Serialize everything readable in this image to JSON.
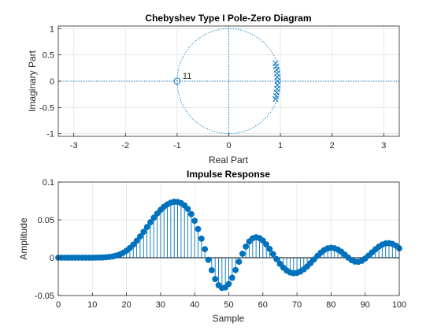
{
  "chart_data": [
    {
      "type": "scatter",
      "title": "Chebyshev Type I Pole-Zero Diagram",
      "xlabel": "Real Part",
      "ylabel": "Imaginary Part",
      "xlim": [
        -3.3,
        3.3
      ],
      "ylim": [
        -1.05,
        1.05
      ],
      "xticks": [
        -3,
        -2,
        -1,
        0,
        1,
        2,
        3
      ],
      "yticks": [
        -1,
        -0.5,
        0,
        0.5,
        1
      ],
      "xtick_labels": [
        "-3",
        "-2",
        "-1",
        "0",
        "1",
        "2",
        "3"
      ],
      "ytick_labels": [
        "-1",
        "-0.5",
        "0",
        "0.5",
        "1"
      ],
      "grid": true,
      "unit_circle": true,
      "zeros": [
        {
          "re": -1,
          "im": 0,
          "multiplicity_label": "11"
        }
      ],
      "poles": [
        {
          "re": 0.905,
          "im": 0.34
        },
        {
          "re": 0.915,
          "im": 0.28
        },
        {
          "re": 0.925,
          "im": 0.215
        },
        {
          "re": 0.935,
          "im": 0.145
        },
        {
          "re": 0.94,
          "im": 0.075
        },
        {
          "re": 0.945,
          "im": 0.0
        },
        {
          "re": 0.94,
          "im": -0.075
        },
        {
          "re": 0.935,
          "im": -0.145
        },
        {
          "re": 0.925,
          "im": -0.215
        },
        {
          "re": 0.915,
          "im": -0.28
        },
        {
          "re": 0.905,
          "im": -0.34
        }
      ],
      "color": "#0072BD"
    },
    {
      "type": "stem",
      "title": "Impulse Response",
      "xlabel": "Sample",
      "ylabel": "Amplitude",
      "xlim": [
        0,
        100
      ],
      "ylim": [
        -0.05,
        0.1
      ],
      "xticks": [
        0,
        10,
        20,
        30,
        40,
        50,
        60,
        70,
        80,
        90,
        100
      ],
      "yticks": [
        -0.05,
        0,
        0.05,
        0.1
      ],
      "xtick_labels": [
        "0",
        "10",
        "20",
        "30",
        "40",
        "50",
        "60",
        "70",
        "80",
        "90",
        "100"
      ],
      "ytick_labels": [
        "-0.05",
        "0",
        "0.05",
        "0.1"
      ],
      "grid": true,
      "color": "#0072BD",
      "x": [
        0,
        1,
        2,
        3,
        4,
        5,
        6,
        7,
        8,
        9,
        10,
        11,
        12,
        13,
        14,
        15,
        16,
        17,
        18,
        19,
        20,
        21,
        22,
        23,
        24,
        25,
        26,
        27,
        28,
        29,
        30,
        31,
        32,
        33,
        34,
        35,
        36,
        37,
        38,
        39,
        40,
        41,
        42,
        43,
        44,
        45,
        46,
        47,
        48,
        49,
        50,
        51,
        52,
        53,
        54,
        55,
        56,
        57,
        58,
        59,
        60,
        61,
        62,
        63,
        64,
        65,
        66,
        67,
        68,
        69,
        70,
        71,
        72,
        73,
        74,
        75,
        76,
        77,
        78,
        79,
        80,
        81,
        82,
        83,
        84,
        85,
        86,
        87,
        88,
        89,
        90,
        91,
        92,
        93,
        94,
        95,
        96,
        97,
        98,
        99,
        100
      ],
      "y": [
        0,
        0,
        0,
        0,
        0,
        0,
        0,
        0,
        0,
        0,
        0,
        0.0001,
        0.0002,
        0.0003,
        0.0006,
        0.001,
        0.0017,
        0.0028,
        0.0043,
        0.0065,
        0.0093,
        0.0129,
        0.0173,
        0.0224,
        0.0281,
        0.0342,
        0.0405,
        0.0468,
        0.0528,
        0.0583,
        0.0632,
        0.0674,
        0.0706,
        0.0728,
        0.0739,
        0.0737,
        0.0722,
        0.0692,
        0.0644,
        0.0576,
        0.0488,
        0.0379,
        0.0252,
        0.0113,
        -0.0028,
        -0.0165,
        -0.0282,
        -0.0363,
        -0.04,
        -0.0393,
        -0.0346,
        -0.0265,
        -0.0163,
        -0.0053,
        0.0052,
        0.0147,
        0.0215,
        0.0256,
        0.027,
        0.0259,
        0.0226,
        0.0176,
        0.0115,
        0.0048,
        -0.0019,
        -0.008,
        -0.0131,
        -0.017,
        -0.0195,
        -0.0205,
        -0.02,
        -0.0183,
        -0.0154,
        -0.0116,
        -0.0071,
        -0.0024,
        0.0024,
        0.0067,
        0.0101,
        0.0123,
        0.0131,
        0.0125,
        0.0107,
        0.0079,
        0.0042,
        0.0002,
        -0.0032,
        -0.0052,
        -0.0055,
        -0.0041,
        -0.0011,
        0.0028,
        0.007,
        0.011,
        0.0146,
        0.0173,
        0.0189,
        0.0192,
        0.0182,
        0.0159,
        0.0124
      ]
    }
  ]
}
